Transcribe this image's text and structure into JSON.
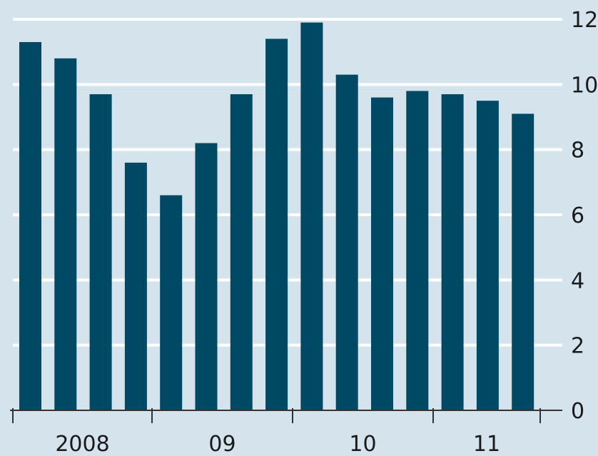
{
  "chart_data": {
    "type": "bar",
    "categories": [
      "2008 Q1",
      "2008 Q2",
      "2008 Q3",
      "2008 Q4",
      "2009 Q1",
      "2009 Q2",
      "2009 Q3",
      "2009 Q4",
      "2010 Q1",
      "2010 Q2",
      "2010 Q3",
      "2010 Q4",
      "2011 Q1",
      "2011 Q2",
      "2011 Q3"
    ],
    "values": [
      11.3,
      10.8,
      9.7,
      7.6,
      6.6,
      8.2,
      9.7,
      11.4,
      11.9,
      10.3,
      9.6,
      9.8,
      9.7,
      9.5,
      9.1
    ],
    "year_labels": [
      "2008",
      "09",
      "10",
      "11"
    ],
    "y_ticks": [
      "0",
      "2",
      "4",
      "6",
      "8",
      "10",
      "12"
    ],
    "ylim": [
      0,
      12
    ],
    "grid": true,
    "y_axis_side": "right",
    "title": "",
    "xlabel": "",
    "ylabel": ""
  },
  "colors": {
    "background": "#d4e3ec",
    "bar": "#004964",
    "gridline": "#ffffff",
    "axis": "#333333",
    "text": "#1a1a1a"
  }
}
